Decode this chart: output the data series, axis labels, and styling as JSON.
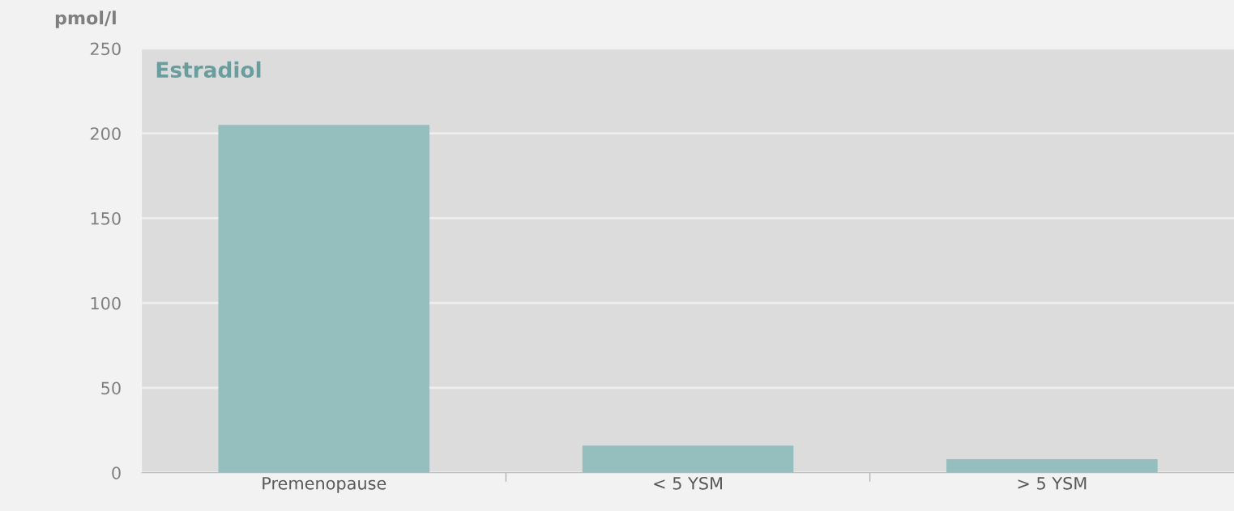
{
  "chart_data": {
    "type": "bar",
    "ylabel": "pmol/l",
    "annotations": [
      "Estradiol"
    ],
    "categories": [
      "Premenopause",
      "< 5 YSM",
      "> 5 YSM"
    ],
    "values": [
      205,
      16,
      8
    ],
    "color": "#95bfbf",
    "ylim": [
      0,
      250
    ],
    "yticks": [
      0,
      50,
      100,
      150,
      200,
      250
    ],
    "grid": "y"
  }
}
